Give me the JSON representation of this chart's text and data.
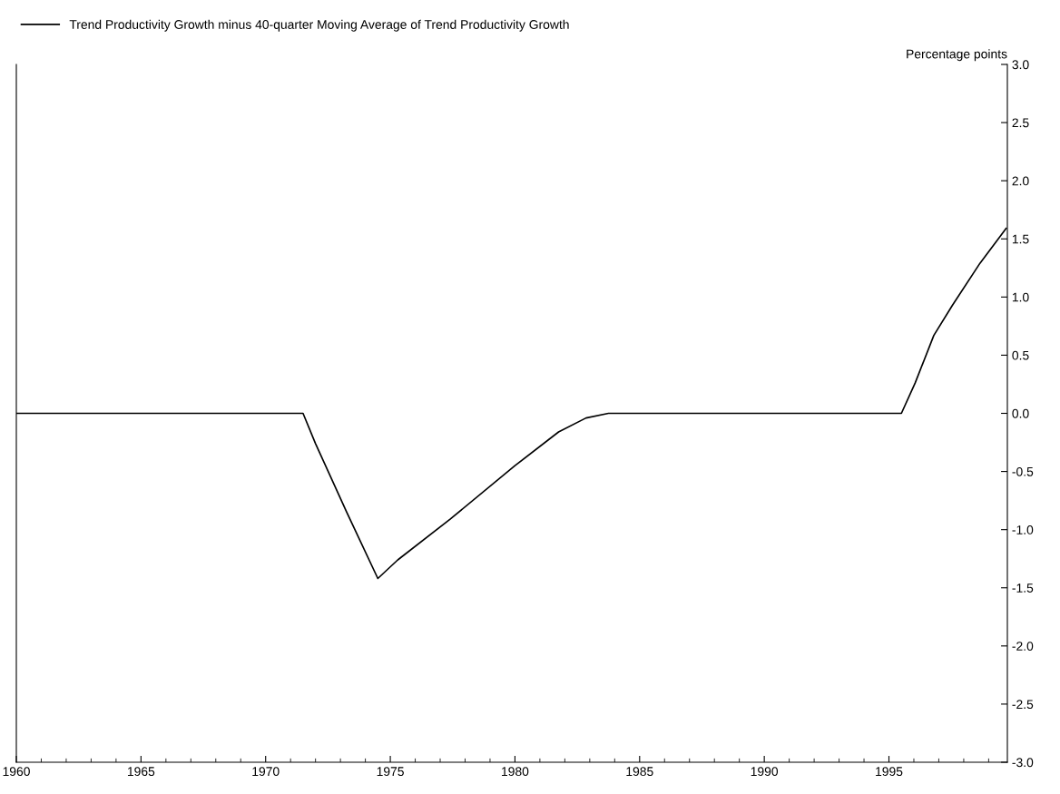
{
  "chart_data": {
    "type": "line",
    "ylabel": "Percentage points",
    "x": [
      1960,
      1971.5,
      1972.0,
      1973.25,
      1974.5,
      1975.3,
      1977.4,
      1980.0,
      1981.75,
      1982.85,
      1983.75,
      1995.5,
      1996.05,
      1996.8,
      1997.55,
      1998.65,
      1999.7
    ],
    "series": [
      {
        "name": "Trend Productivity Growth minus 40-quarter Moving Average of Trend Productivity Growth",
        "color": "#000000",
        "values": [
          0,
          0,
          -0.26,
          -0.85,
          -1.42,
          -1.26,
          -0.91,
          -0.45,
          -0.16,
          -0.04,
          0,
          0,
          0.26,
          0.67,
          0.93,
          1.29,
          1.59
        ]
      }
    ],
    "xlim": [
      1960,
      1999.75
    ],
    "xticks": [
      1960,
      1965,
      1970,
      1975,
      1980,
      1985,
      1990,
      1995
    ],
    "ylim": [
      -3,
      3
    ],
    "yticks": [
      {
        "value": -3,
        "label": "-3.0"
      },
      {
        "value": -2.5,
        "label": "-2.5"
      },
      {
        "value": -2,
        "label": "-2.0"
      },
      {
        "value": -1.5,
        "label": "-1.5"
      },
      {
        "value": -1,
        "label": "-1.0"
      },
      {
        "value": -0.5,
        "label": "-0.5"
      },
      {
        "value": 0,
        "label": "0.0"
      },
      {
        "value": 0.5,
        "label": "0.5"
      },
      {
        "value": 1,
        "label": "1.0"
      },
      {
        "value": 1.5,
        "label": "1.5"
      },
      {
        "value": 2,
        "label": "2.0"
      },
      {
        "value": 2.5,
        "label": "2.5"
      },
      {
        "value": 3,
        "label": "3.0"
      }
    ],
    "grid": false,
    "legend": "top left",
    "marker": "none",
    "line_style": "solid"
  }
}
